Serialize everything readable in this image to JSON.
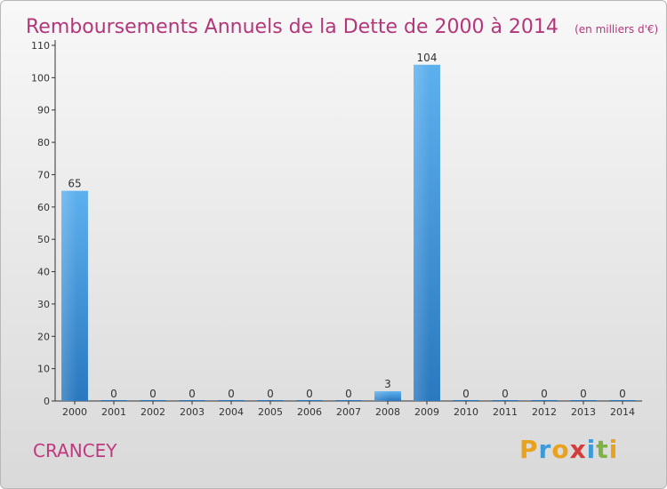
{
  "chart_data": {
    "type": "bar",
    "title": "Remboursements Annuels de la Dette de 2000 à 2014",
    "subtitle": "(en milliers d'€)",
    "categories": [
      "2000",
      "2001",
      "2002",
      "2003",
      "2004",
      "2005",
      "2006",
      "2007",
      "2008",
      "2009",
      "2010",
      "2011",
      "2012",
      "2013",
      "2014"
    ],
    "values": [
      65,
      0,
      0,
      0,
      0,
      0,
      0,
      0,
      3,
      104,
      0,
      0,
      0,
      0,
      0
    ],
    "ylim": [
      0,
      110
    ],
    "yticks": [
      0,
      10,
      20,
      30,
      40,
      50,
      60,
      70,
      80,
      90,
      100,
      110
    ],
    "grid": false,
    "bar_color": "#3a8fd6"
  },
  "footer": {
    "commune": "CRANCEY",
    "logo_text": "Proxiti",
    "logo_colors": [
      "#e8a21d",
      "#3f9ad8",
      "#e8a21d",
      "#d43b3b",
      "#3f9ad8",
      "#7cb342",
      "#e8a21d"
    ]
  }
}
